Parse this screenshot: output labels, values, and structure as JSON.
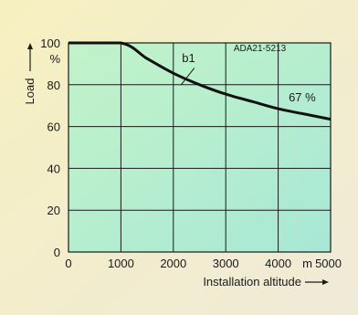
{
  "chart_data": {
    "type": "line",
    "series": [
      {
        "name": "b1",
        "x": [
          0,
          1000,
          1500,
          2000,
          2500,
          3000,
          3500,
          4000,
          4500,
          5000
        ],
        "y": [
          100,
          100,
          92.5,
          85.5,
          80,
          75.5,
          72,
          68.5,
          66,
          63.5
        ]
      }
    ],
    "xticks": [
      0,
      1000,
      2000,
      3000,
      4000,
      5000
    ],
    "xtick_labels": [
      "0",
      "1000",
      "2000",
      "3000",
      "4000",
      "5000"
    ],
    "x_unit": "m",
    "yticks": [
      0,
      20,
      40,
      60,
      80,
      100
    ],
    "y_unit": "%",
    "xlim": [
      0,
      5000
    ],
    "ylim": [
      0,
      100
    ],
    "xlabel": "Installation altitude",
    "ylabel": "Load",
    "grid": true,
    "annotations": [
      {
        "text": "ADA21-5213",
        "x": 3650,
        "y": 96
      },
      {
        "text": "b1",
        "x": 2200,
        "y": 89
      },
      {
        "text": "67 %",
        "x": 4200,
        "y": 72
      }
    ],
    "colors": {
      "background": "#f4efc4",
      "plot_fill": "#b7efc9",
      "line": "#111111",
      "grid": "#1a1a1a"
    }
  }
}
